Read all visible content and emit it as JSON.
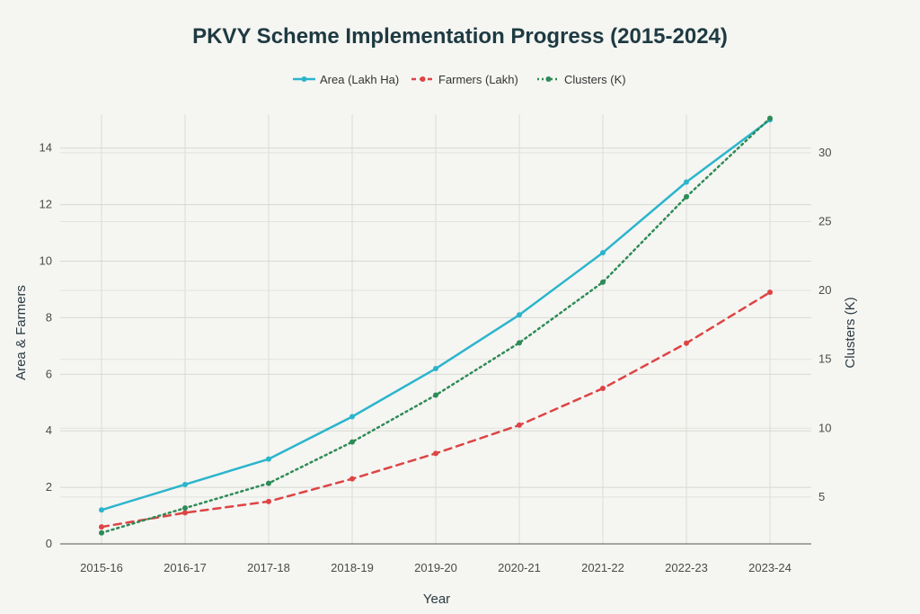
{
  "chart_data": {
    "type": "line",
    "title": "PKVY Scheme Implementation Progress (2015-2024)",
    "xlabel": "Year",
    "ylabel_left": "Area & Farmers",
    "ylabel_right": "Clusters (K)",
    "categories": [
      "2015-16",
      "2016-17",
      "2017-18",
      "2018-19",
      "2019-20",
      "2020-21",
      "2021-22",
      "2022-23",
      "2023-24"
    ],
    "ylim_left": [
      0,
      15.2
    ],
    "yticks_left": [
      0,
      2,
      4,
      6,
      8,
      10,
      12,
      14
    ],
    "ylim_right": [
      1.6,
      32.8
    ],
    "yticks_right": [
      5,
      10,
      15,
      20,
      25,
      30
    ],
    "grid": true,
    "legend_position": "top-center",
    "series": [
      {
        "name": "Area (Lakh Ha)",
        "axis": "left",
        "style": "solid",
        "color": "#2bb5cc",
        "values": [
          1.2,
          2.1,
          3.0,
          4.5,
          6.2,
          8.1,
          10.3,
          12.8,
          15.0
        ]
      },
      {
        "name": "Farmers (Lakh)",
        "axis": "left",
        "style": "dashed",
        "color": "#dd4444",
        "values": [
          0.6,
          1.1,
          1.5,
          2.3,
          3.2,
          4.2,
          5.5,
          7.1,
          8.9
        ]
      },
      {
        "name": "Clusters (K)",
        "axis": "right",
        "style": "dotted",
        "color": "#2e8b57",
        "values": [
          2.4,
          4.2,
          6.0,
          9.0,
          12.4,
          16.2,
          20.6,
          26.8,
          32.5
        ]
      }
    ]
  }
}
